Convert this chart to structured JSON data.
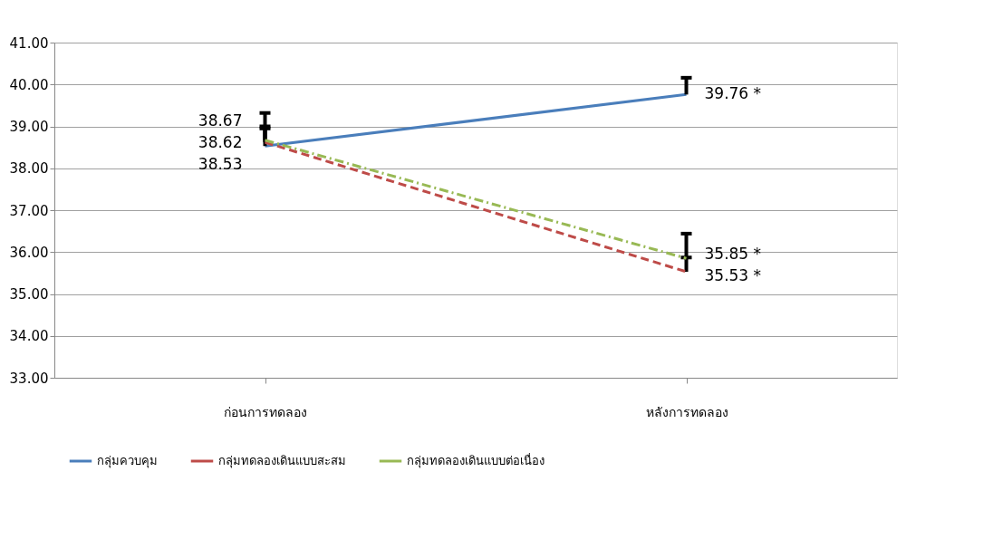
{
  "chart_data": {
    "type": "line",
    "categories": [
      "ก่อนการทดลอง",
      "หลังการทดลอง"
    ],
    "series": [
      {
        "name": "กลุ่มควบคุม",
        "color": "#4a7ebb",
        "line_style": "solid",
        "values": [
          38.53,
          39.76
        ],
        "errors": [
          [
            38.53,
            38.95
          ],
          [
            39.76,
            40.16
          ]
        ],
        "value_labels": [
          "38.53",
          "39.76 *"
        ]
      },
      {
        "name": "กลุ่มทดลองเดินแบบสะสม",
        "color": "#be4b48",
        "line_style": "dashed",
        "values": [
          38.62,
          35.53
        ],
        "errors": [
          [
            38.62,
            39.0
          ],
          [
            35.53,
            35.87
          ]
        ],
        "value_labels": [
          "38.62",
          "35.53 *"
        ]
      },
      {
        "name": "กลุ่มทดลองเดินแบบต่อเนื่อง",
        "color": "#98b954",
        "line_style": "dashdot",
        "values": [
          38.67,
          35.85
        ],
        "errors": [
          [
            38.67,
            39.32
          ],
          [
            35.85,
            36.44
          ]
        ],
        "value_labels": [
          "38.67",
          "35.85 *"
        ]
      }
    ],
    "ylim": [
      33,
      41
    ],
    "yticks": [
      {
        "value": 33,
        "label": "33.00"
      },
      {
        "value": 34,
        "label": "34.00"
      },
      {
        "value": 35,
        "label": "35.00"
      },
      {
        "value": 36,
        "label": "36.00"
      },
      {
        "value": 37,
        "label": "37.00"
      },
      {
        "value": 38,
        "label": "38.00"
      },
      {
        "value": 39,
        "label": "39.00"
      },
      {
        "value": 40,
        "label": "40.00"
      },
      {
        "value": 41,
        "label": "41.00"
      }
    ],
    "grid": "y",
    "legend": "bottom",
    "marker": "none"
  }
}
